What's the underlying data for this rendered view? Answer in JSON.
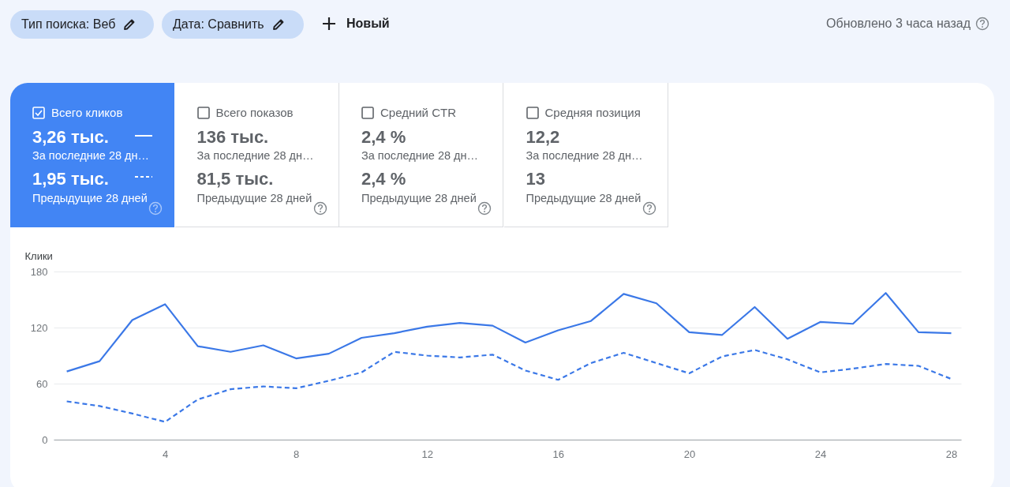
{
  "chart_data": {
    "type": "line",
    "ylabel": "Клики",
    "x": [
      1,
      2,
      3,
      4,
      5,
      6,
      7,
      8,
      9,
      10,
      11,
      12,
      13,
      14,
      15,
      16,
      17,
      18,
      19,
      20,
      21,
      22,
      23,
      24,
      25,
      26,
      27,
      28
    ],
    "xlim": [
      0.6,
      28.3
    ],
    "xticks": [
      4,
      8,
      12,
      16,
      20,
      24,
      28
    ],
    "ylim": [
      0,
      180
    ],
    "yticks": [
      0,
      60,
      120,
      180
    ],
    "grid": "y",
    "marker": "none",
    "series": [
      {
        "color": "#3b78e7",
        "line_style": "solid",
        "values": [
          73,
          84,
          128,
          145,
          100,
          94,
          101,
          87,
          92,
          109,
          114,
          121,
          125,
          122,
          104,
          117,
          127,
          156,
          146,
          115,
          112,
          142,
          108,
          126,
          124,
          157,
          115,
          114
        ]
      },
      {
        "color": "#3b78e7",
        "line_style": "dashed",
        "values": [
          41,
          36,
          28,
          19,
          43,
          54,
          57,
          55,
          63,
          72,
          94,
          90,
          88,
          91,
          74,
          64,
          82,
          93,
          82,
          71,
          89,
          96,
          86,
          72,
          76,
          81,
          79,
          65
        ]
      }
    ],
    "annotations": [
      "Тип поиска: Веб",
      "Дата: Сравнить",
      "Новый",
      "Обновлено 3 часа назад",
      "Всего кликов",
      "3,26 тыс.",
      "За последние 28 дн…",
      "1,95 тыс.",
      "Предыдущие 28 дней",
      "Всего показов",
      "136 тыс.",
      "За последние 28 дн…",
      "81,5 тыс.",
      "Предыдущие 28 дней",
      "Средний CTR",
      "2,4 %",
      "За последние 28 дн…",
      "2,4 %",
      "Предыдущие 28 дней",
      "Средняя позиция",
      "12,2",
      "За последние 28 дн…",
      "13",
      "Предыдущие 28 дней"
    ]
  }
}
